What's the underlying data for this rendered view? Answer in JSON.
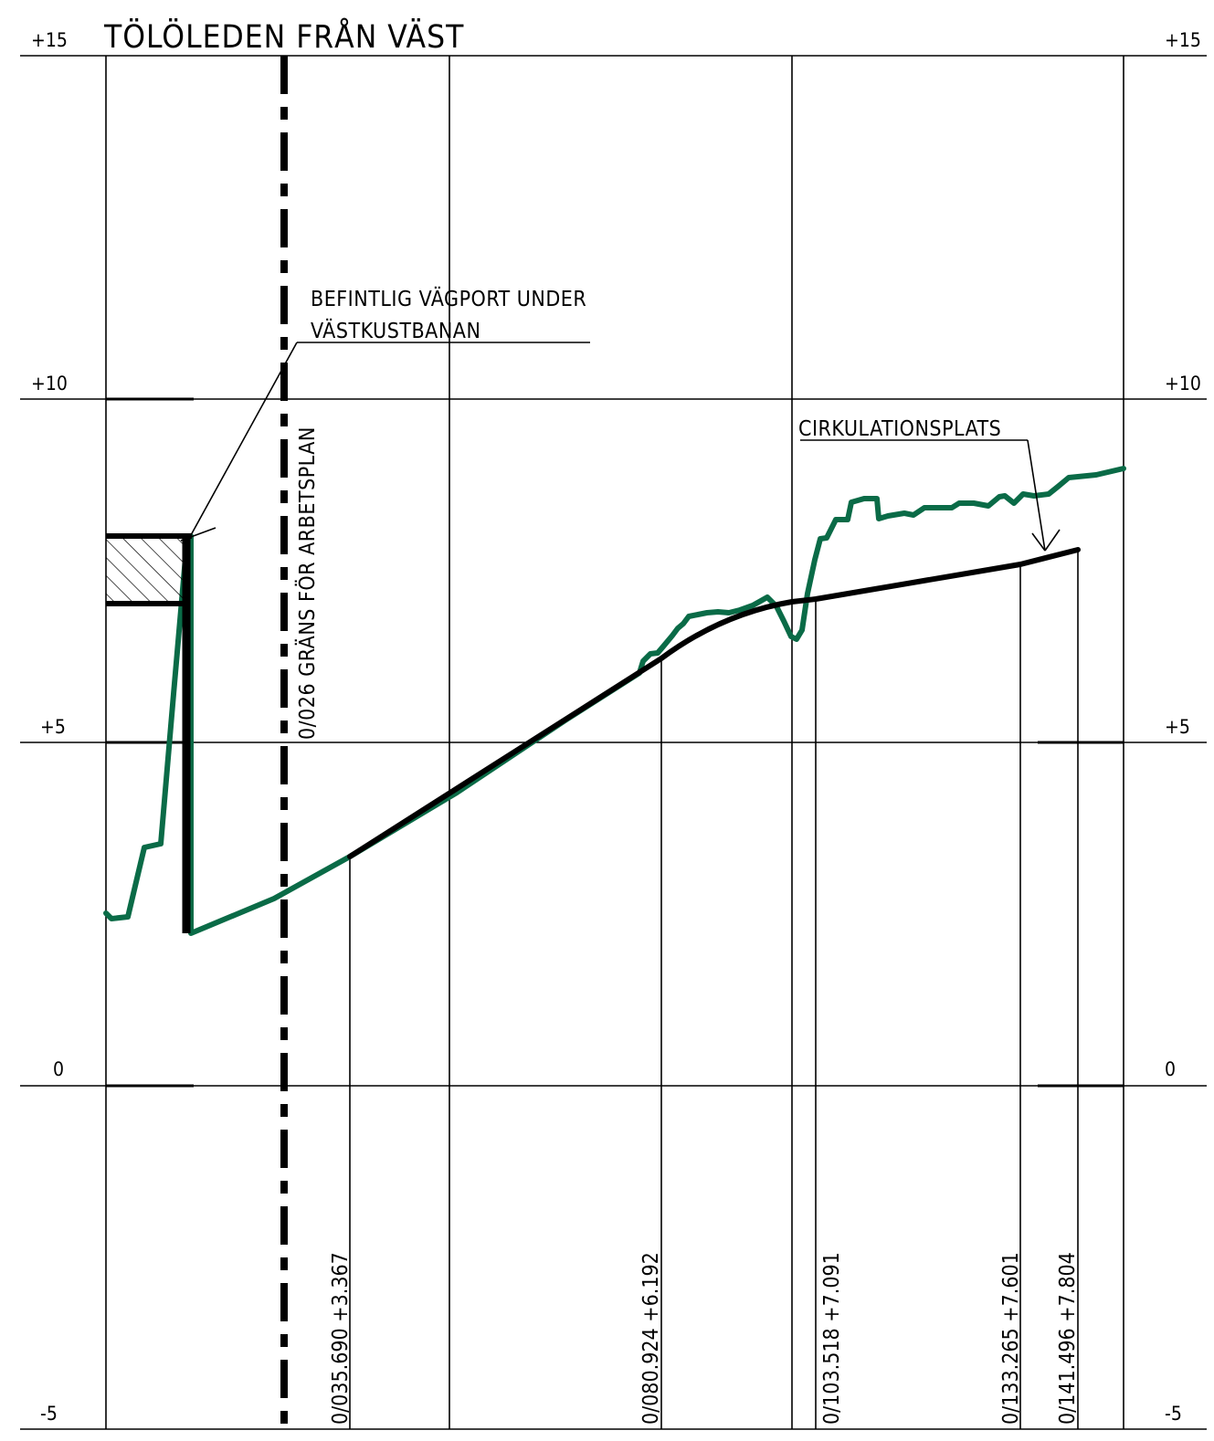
{
  "title": "TÖLÖLEDEN FRÅN VÄST",
  "elevation_labels": {
    "left": [
      "+15",
      "+10",
      "+5",
      "0",
      "-5"
    ],
    "right": [
      "+15",
      "+10",
      "+5",
      "0",
      "-5"
    ]
  },
  "annotations": {
    "existing_underpass_line1": "BEFINTLIG VÄGPORT UNDER",
    "existing_underpass_line2": "VÄSTKUSTBANAN",
    "work_plan_boundary": "0/026 GRÄNS FÖR ARBETSPLAN",
    "roundabout": "CIRKULATIONSPLATS"
  },
  "stations": [
    {
      "label": "0/035.690 +3.367"
    },
    {
      "label": "0/080.924  +6.192"
    },
    {
      "label": "0/103.518  +7.091"
    },
    {
      "label": "0/133.265 +7.601"
    },
    {
      "label": "0/141.496 +7.804"
    }
  ],
  "colors": {
    "existing_ground": "#0a6b47",
    "design_profile": "#000000",
    "grid": "#000000"
  }
}
